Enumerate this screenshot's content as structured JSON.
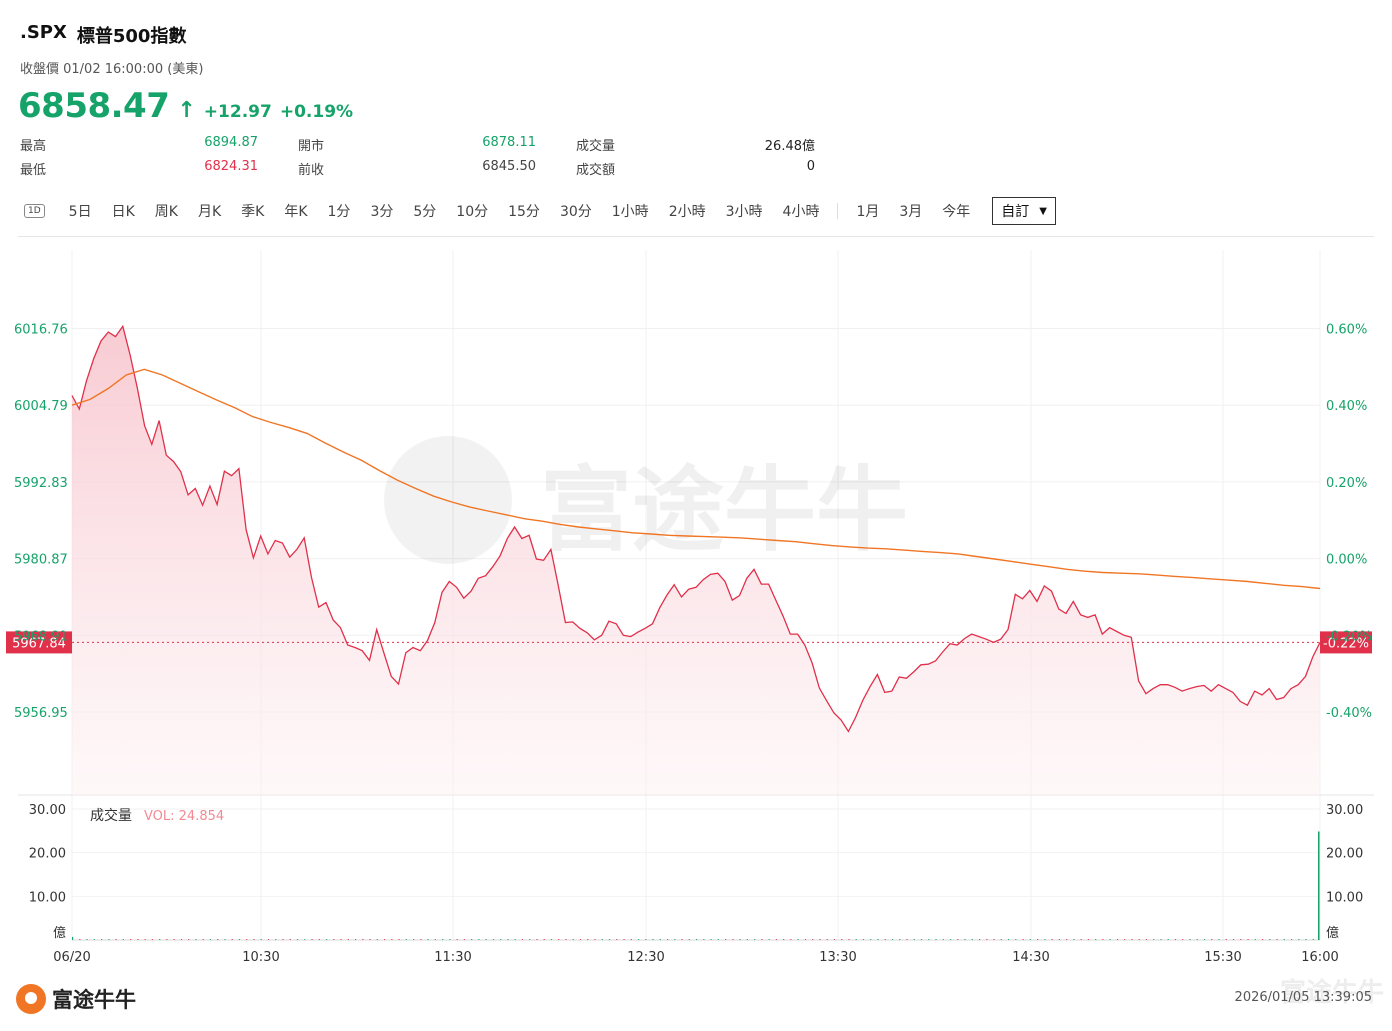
{
  "header": {
    "symbol": ".SPX",
    "name": "標普500指數",
    "subtitle": "收盤價 01/02 16:00:00 (美東)",
    "price": "6858.47",
    "arrow": "↑",
    "change": "+12.97",
    "change_pct": "+0.19%"
  },
  "stats": [
    {
      "label": "最高",
      "value": "6894.87",
      "tone": "green"
    },
    {
      "label": "最低",
      "value": "6824.31",
      "tone": "red"
    },
    {
      "label": "開市",
      "value": "6878.11",
      "tone": "green"
    },
    {
      "label": "前收",
      "value": "6845.50",
      "tone": "neutral"
    },
    {
      "label": "成交量",
      "value": "26.48億",
      "tone": "dark"
    },
    {
      "label": "成交額",
      "value": "0",
      "tone": "dark"
    }
  ],
  "tabs": {
    "icon_label": "1D",
    "group1": [
      "5日",
      "日K",
      "周K",
      "月K",
      "季K",
      "年K",
      "1分",
      "3分",
      "5分",
      "10分",
      "15分",
      "30分",
      "1小時",
      "2小時",
      "3小時",
      "4小時"
    ],
    "group2": [
      "1月",
      "3月",
      "今年"
    ],
    "custom": "自訂",
    "custom_caret": "▼"
  },
  "colors": {
    "up": "#16a36a",
    "down": "#e0304a",
    "avg_line": "#f07524",
    "area_fill": "#fbe0e4"
  },
  "chart_data": [
    {
      "type": "area",
      "name": "price",
      "x_ticks": [
        "06/20",
        "10:30",
        "11:30",
        "12:30",
        "13:30",
        "14:30",
        "15:30",
        "16:00"
      ],
      "y_ticks_left": [
        "6016.76",
        "6004.79",
        "5992.83",
        "5980.87",
        "5968.91",
        "5956.95"
      ],
      "y_ticks_right": [
        "0.60%",
        "0.40%",
        "0.20%",
        "0.00%",
        "-0.20%",
        "-0.40%"
      ],
      "ylim": [
        5944,
        6029
      ],
      "prev_close": 5980.87,
      "current_label": "5967.84",
      "current_pct_label": "-0.22%",
      "series": [
        {
          "name": "price",
          "values": [
            6006.3,
            6004.2,
            6008.6,
            6012.1,
            6014.8,
            6016.2,
            6015.5,
            6017.1,
            6012.7,
            6007.5,
            6001.6,
            5998.7,
            6002.4,
            5997.0,
            5996.0,
            5994.4,
            5990.8,
            5991.8,
            5989.2,
            5992.2,
            5989.3,
            5994.5,
            5993.8,
            5994.9,
            5985.4,
            5981.0,
            5984.4,
            5981.6,
            5983.7,
            5983.3,
            5981.1,
            5982.3,
            5984.1,
            5978.0,
            5973.3,
            5974.0,
            5971.3,
            5970.1,
            5967.4,
            5967.0,
            5966.5,
            5965.0,
            5969.8,
            5966.1,
            5962.5,
            5961.3,
            5966.2,
            5967.0,
            5966.5,
            5968.1,
            5970.9,
            5975.6,
            5977.3,
            5976.4,
            5974.7,
            5975.8,
            5977.8,
            5978.2,
            5979.6,
            5981.3,
            5984.0,
            5985.8,
            5984.0,
            5984.5,
            5980.8,
            5980.6,
            5982.3,
            5976.8,
            5970.9,
            5971.0,
            5970.0,
            5969.3,
            5968.2,
            5968.9,
            5971.1,
            5970.7,
            5968.9,
            5968.7,
            5969.4,
            5970.0,
            5970.7,
            5973.2,
            5975.2,
            5976.8,
            5974.9,
            5976.1,
            5976.4,
            5977.6,
            5978.4,
            5978.6,
            5977.3,
            5974.4,
            5975.1,
            5977.8,
            5979.2,
            5976.9,
            5976.9,
            5974.4,
            5971.9,
            5969.1,
            5969.1,
            5967.4,
            5964.6,
            5960.7,
            5958.7,
            5956.8,
            5955.7,
            5953.9,
            5956.1,
            5958.8,
            5960.9,
            5962.8,
            5960.0,
            5960.2,
            5962.4,
            5962.2,
            5963.2,
            5964.3,
            5964.4,
            5964.9,
            5966.3,
            5967.6,
            5967.4,
            5968.4,
            5969.1,
            5968.7,
            5968.3,
            5967.8,
            5968.3,
            5969.8,
            5975.3,
            5974.6,
            5975.9,
            5974.2,
            5976.6,
            5975.8,
            5973.0,
            5972.3,
            5974.2,
            5972.1,
            5971.7,
            5972.1,
            5969.1,
            5970.1,
            5969.5,
            5968.9,
            5968.6,
            5961.8,
            5959.8,
            5960.6,
            5961.2,
            5961.2,
            5960.8,
            5960.2,
            5960.6,
            5960.9,
            5961.1,
            5960.2,
            5961.2,
            5960.6,
            5960.0,
            5958.6,
            5958.0,
            5960.2,
            5959.6,
            5960.6,
            5958.9,
            5959.2,
            5960.6,
            5961.2,
            5962.5,
            5965.5,
            5967.8
          ]
        },
        {
          "name": "average",
          "values": [
            6004.8,
            6005.7,
            6007.4,
            6009.5,
            6010.4,
            6009.5,
            6008.2,
            6006.9,
            6005.6,
            6004.4,
            6003.0,
            6002.1,
            6001.3,
            6000.4,
            5998.9,
            5997.5,
            5996.2,
            5994.6,
            5993.1,
            5991.8,
            5990.6,
            5989.7,
            5988.9,
            5988.3,
            5987.7,
            5987.1,
            5986.7,
            5986.2,
            5985.8,
            5985.5,
            5985.2,
            5984.9,
            5984.7,
            5984.5,
            5984.4,
            5984.3,
            5984.2,
            5984.1,
            5983.9,
            5983.7,
            5983.5,
            5983.2,
            5982.9,
            5982.7,
            5982.5,
            5982.4,
            5982.2,
            5982.0,
            5981.8,
            5981.6,
            5981.2,
            5980.8,
            5980.4,
            5980.0,
            5979.6,
            5979.2,
            5978.9,
            5978.7,
            5978.6,
            5978.5,
            5978.3,
            5978.1,
            5977.9,
            5977.7,
            5977.5,
            5977.3,
            5977.0,
            5976.7,
            5976.5,
            5976.2
          ]
        }
      ]
    },
    {
      "type": "bar",
      "name": "volume",
      "title": "成交量",
      "legend": "VOL: 24.854",
      "unit": "億",
      "y_ticks": [
        "30.00",
        "20.00",
        "10.00"
      ],
      "ylim": [
        0,
        30
      ],
      "first_bar": 0.7,
      "last_bar": 24.854,
      "intermediate_bar": 0.2
    }
  ],
  "watermark": "富途牛牛",
  "footer": {
    "brand": "富途牛牛",
    "timestamp": "2026/01/05 13:39:05",
    "watermark": "富途牛牛"
  }
}
